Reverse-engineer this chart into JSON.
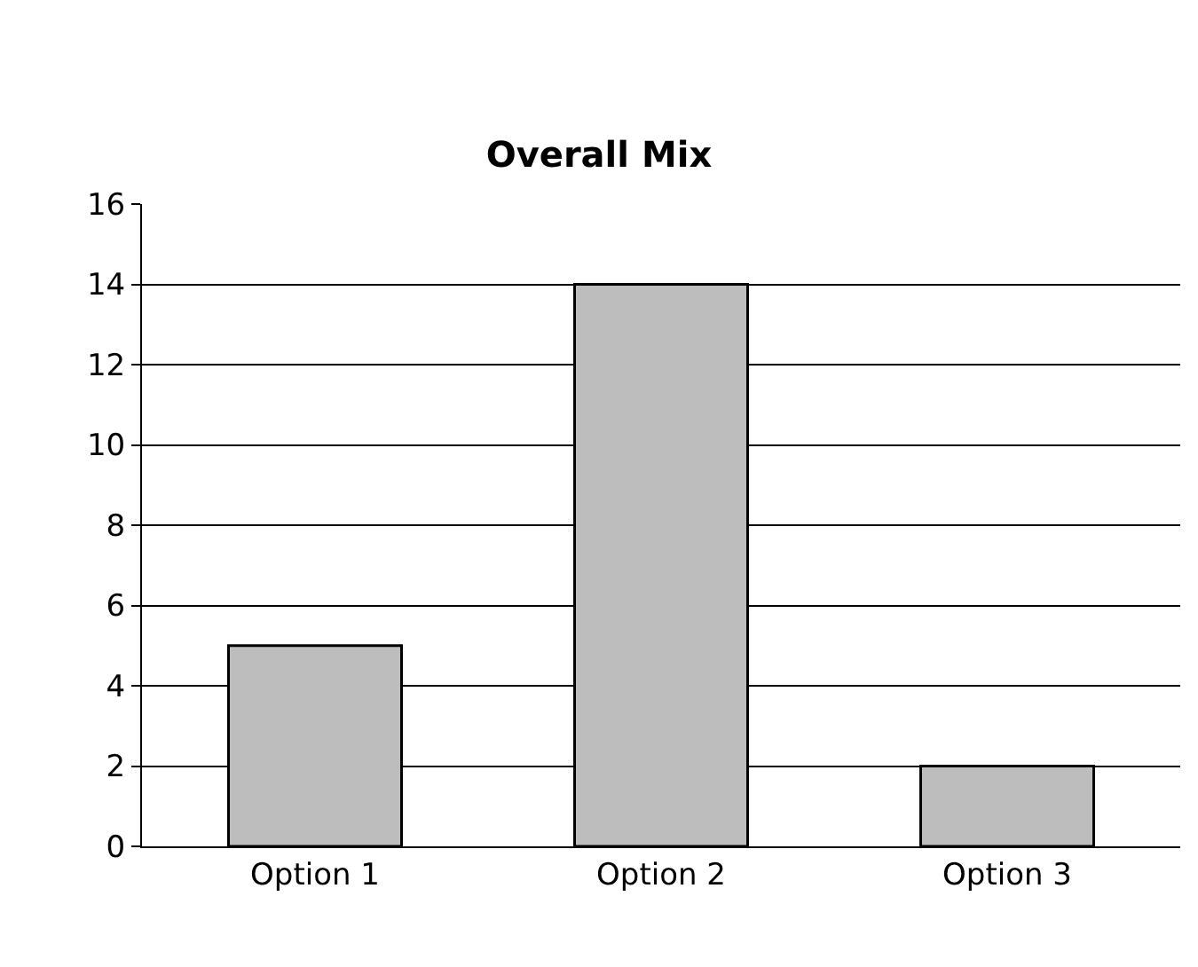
{
  "chart_data": {
    "type": "bar",
    "title": "Overall Mix",
    "categories": [
      "Option 1",
      "Option 2",
      "Option 3"
    ],
    "values": [
      5,
      14,
      2
    ],
    "color": "#bdbdbd",
    "ylim": [
      0,
      16
    ],
    "yticks": [
      0,
      2,
      4,
      6,
      8,
      10,
      12,
      14,
      16
    ],
    "grid": "y"
  }
}
